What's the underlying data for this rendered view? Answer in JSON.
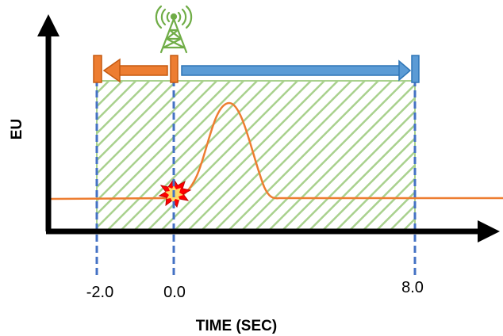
{
  "chart_data": {
    "type": "diagram",
    "xlabel": "TIME (SEC)",
    "ylabel": "EU",
    "ticks": [
      {
        "value": -2.0,
        "label": "-2.0"
      },
      {
        "value": 0.0,
        "label": "0.0"
      },
      {
        "value": 8.0,
        "label": "8.0"
      }
    ],
    "window": {
      "pre_trigger": -2.0,
      "trigger": 0.0,
      "post_trigger": 8.0
    },
    "icons": [
      "radio-tower-icon",
      "explosion-icon"
    ],
    "colors": {
      "axis": "#000000",
      "pre_arrow": "#ED7D31",
      "pre_arrow_stroke": "#C55A11",
      "post_arrow": "#5B9BD5",
      "post_arrow_stroke": "#2E75B6",
      "dashed_lines": "#4472C4",
      "signal": "#ED7D31",
      "hatch": "#A9D18E",
      "tower": "#70AD47",
      "burst_outer": "#FF0000",
      "burst_inner": "#FFD966"
    }
  }
}
